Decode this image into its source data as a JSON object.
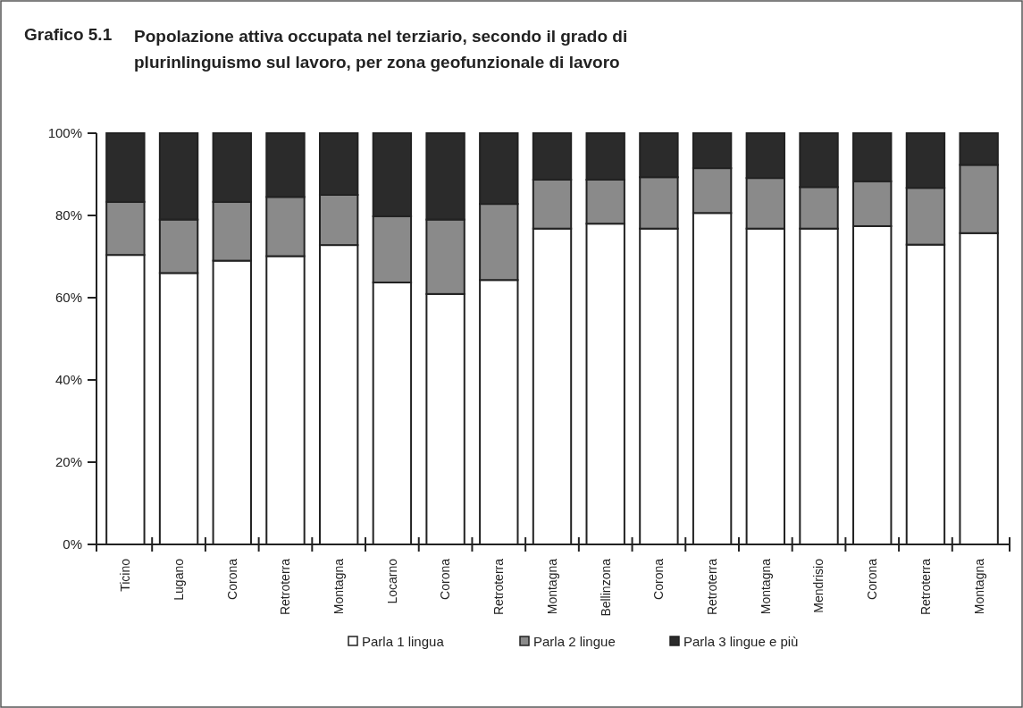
{
  "chart_data": {
    "type": "bar",
    "stacked": true,
    "title": "Grafico 5.1",
    "subtitle": "Popolazione attiva occupata nel terziario, secondo il grado di plurinlinguismo sul lavoro, per zona geofunzionale di lavoro",
    "categories": [
      "Ticino",
      "Lugano",
      "Corona",
      "Retroterra",
      "Montagna",
      "Locarno",
      "Corona",
      "Retroterra",
      "Montagna",
      "Bellinzona",
      "Corona",
      "Retroterra",
      "Montagna",
      "Mendrisio",
      "Corona",
      "Retroterra",
      "Montagna"
    ],
    "series": [
      {
        "name": "Parla 1 lingua",
        "color": "#ffffff",
        "values": [
          70.4,
          66.0,
          69.0,
          70.1,
          72.8,
          63.7,
          60.9,
          64.3,
          76.8,
          78.0,
          76.8,
          80.6,
          76.8,
          76.8,
          77.4,
          72.9,
          75.7
        ]
      },
      {
        "name": "Parla 2 lingue",
        "color": "#8a8a8a",
        "values": [
          12.9,
          13.0,
          14.3,
          14.4,
          12.2,
          16.1,
          18.1,
          18.5,
          11.9,
          10.7,
          12.5,
          10.9,
          12.3,
          10.1,
          10.9,
          13.8,
          16.6
        ]
      },
      {
        "name": "Parla 3 lingue e più",
        "color": "#2b2b2b",
        "values": [
          16.7,
          21.0,
          16.7,
          15.5,
          15.0,
          20.2,
          21.0,
          17.2,
          11.3,
          11.3,
          10.7,
          8.5,
          10.9,
          13.1,
          11.7,
          13.3,
          7.7
        ]
      }
    ],
    "ylim": [
      0,
      100
    ],
    "yticks": [
      {
        "value": 0,
        "label": "0%"
      },
      {
        "value": 20,
        "label": "20%"
      },
      {
        "value": 40,
        "label": "40%"
      },
      {
        "value": 60,
        "label": "60%"
      },
      {
        "value": 80,
        "label": "80%"
      },
      {
        "value": 100,
        "label": "100%"
      }
    ],
    "legend": "bottom"
  }
}
